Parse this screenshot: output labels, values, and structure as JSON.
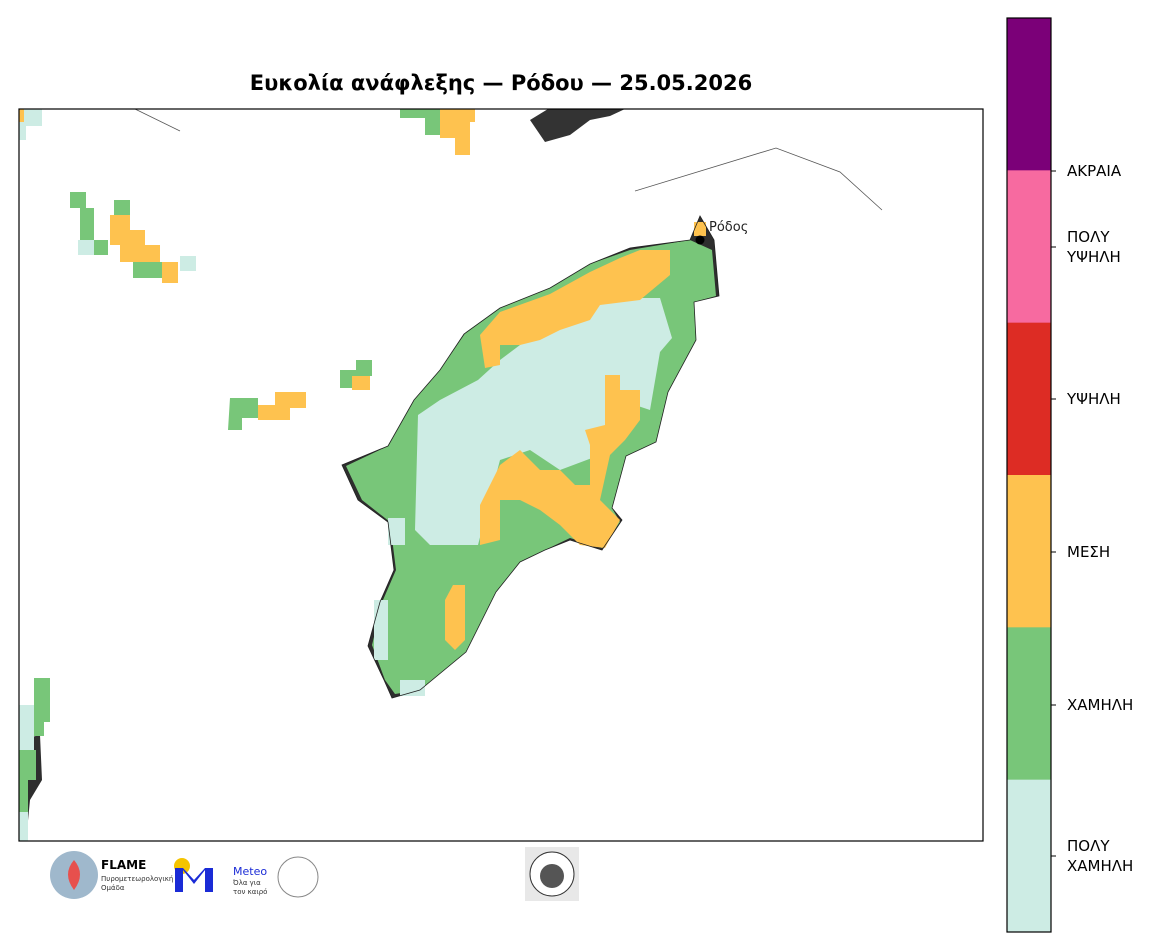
{
  "title": "Ευκολία ανάφλεξης — Ρόδου — 25.05.2026",
  "place_label": "Ρόδος",
  "legend": {
    "levels": [
      {
        "label": "ΑΚΡΑΙΑ",
        "color": "#7b0078"
      },
      {
        "label": "ΠΟΛΥ ΥΨΗΛΗ",
        "color": "#f76aa0"
      },
      {
        "label": "ΥΨΗΛΗ",
        "color": "#dd2c24"
      },
      {
        "label": "ΜΕΣΗ",
        "color": "#fec24f"
      },
      {
        "label": "ΧΑΜΗΛΗ",
        "color": "#78c679"
      },
      {
        "label": "ΠΟΛΥ ΧΑΜΗΛΗ",
        "color": "#cdece4"
      }
    ]
  },
  "logos": {
    "flame": "FLAME",
    "flame_sub": "Πυρομετεωρολογική Ομάδα",
    "meteo": "Meteo",
    "meteo_sub": "Όλα για τον καιρό"
  }
}
